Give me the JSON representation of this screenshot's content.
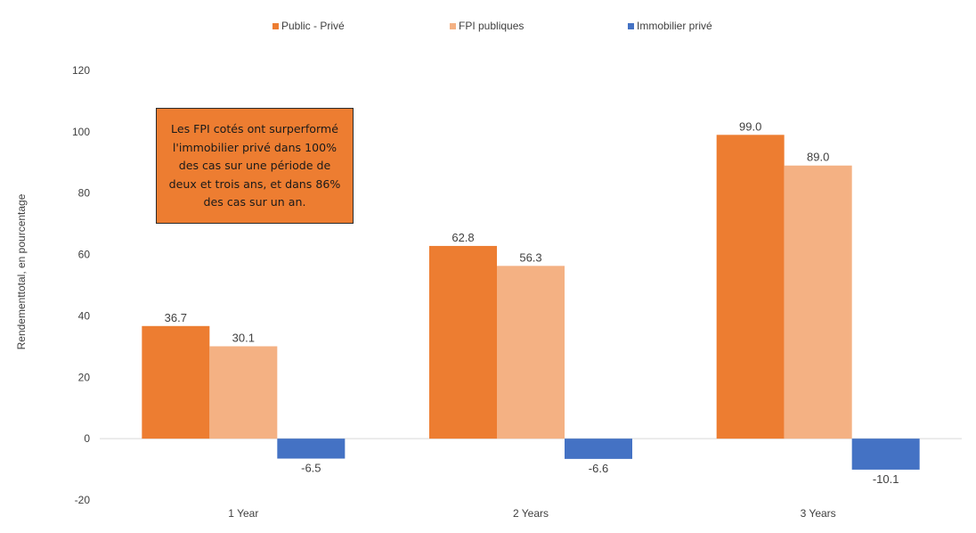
{
  "chart_data": {
    "type": "bar",
    "categories": [
      "1 Year",
      "2 Years",
      "3 Years"
    ],
    "series": [
      {
        "name": "Public - Privé",
        "color": "#ed7d31",
        "values": [
          36.7,
          62.8,
          99.0
        ]
      },
      {
        "name": "FPI publiques",
        "color": "#f4b183",
        "values": [
          30.1,
          56.3,
          89.0
        ]
      },
      {
        "name": "Immobilier privé",
        "color": "#4472c4",
        "values": [
          -6.5,
          -6.6,
          -10.1
        ]
      }
    ],
    "ylabel": "Rendementtotal, en pourcentage",
    "ylim": [
      -20,
      120
    ],
    "yticks": [
      -20,
      0,
      20,
      40,
      60,
      80,
      100,
      120
    ],
    "grid": false,
    "legend_position": "top",
    "annotation": "Les FPI cotés ont surperformé l'immobilier privé dans 100% des cas sur une période de deux et trois ans, et dans 86% des cas sur un an."
  }
}
